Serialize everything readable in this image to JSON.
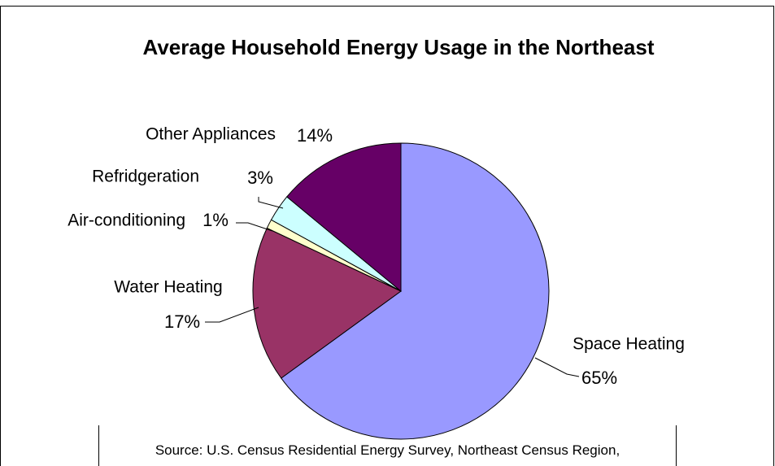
{
  "chart_data": {
    "type": "pie",
    "title": "Average Household Energy Usage in the Northeast",
    "source": "Source: U.S. Census Residential Energy Survey, Northeast Census Region,",
    "categories": [
      "Space Heating",
      "Water Heating",
      "Air-conditioning",
      "Refridgeration",
      "Other Appliances"
    ],
    "values": [
      65,
      17,
      1,
      3,
      14
    ],
    "value_labels": [
      "65%",
      "17%",
      "1%",
      "3%",
      "14%"
    ],
    "colors": [
      "#9999ff",
      "#993366",
      "#ffffcc",
      "#ccffff",
      "#660066"
    ]
  }
}
